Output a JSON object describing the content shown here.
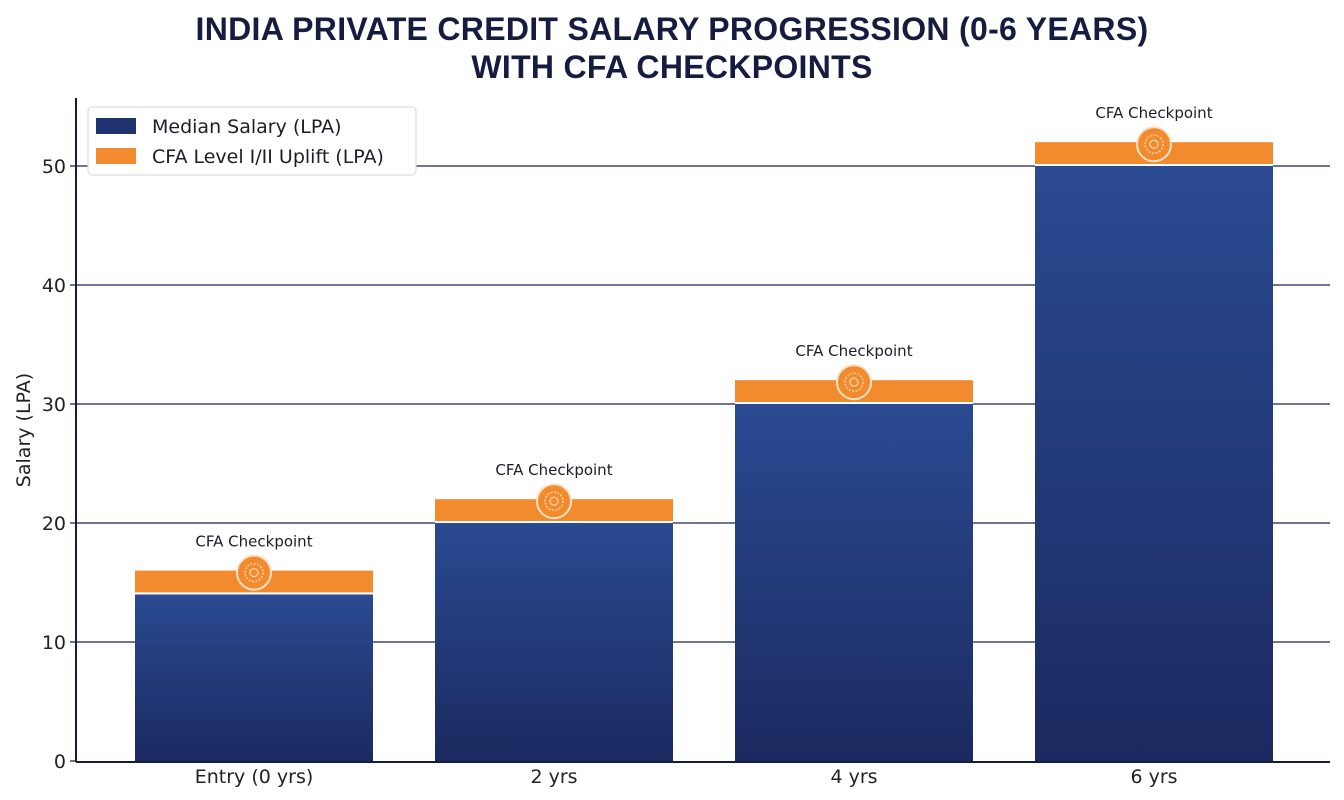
{
  "chart_data": {
    "type": "bar",
    "stacked": true,
    "title": "INDIA PRIVATE CREDIT SALARY PROGRESSION (0-6 YEARS) WITH CFA CHECKPOINTS",
    "title_lines": [
      "INDIA PRIVATE CREDIT SALARY PROGRESSION (0-6 YEARS)",
      "WITH CFA CHECKPOINTS"
    ],
    "xlabel": "",
    "ylabel": "Salary (LPA)",
    "ylim": [
      0,
      55
    ],
    "yticks": [
      0,
      10,
      20,
      30,
      40,
      50
    ],
    "grid": "horizontal",
    "legend_position": "top-left",
    "categories": [
      "Entry (0 yrs)",
      "2 yrs",
      "4 yrs",
      "6 yrs"
    ],
    "series": [
      {
        "name": "Median Salary (LPA)",
        "values": [
          14,
          20,
          30,
          50
        ],
        "color": "#1f3370"
      },
      {
        "name": "CFA Level I/II Uplift (LPA)",
        "values": [
          2,
          2,
          2,
          2
        ],
        "color": "#f28a2e"
      }
    ],
    "annotations": [
      "CFA Checkpoint",
      "CFA Checkpoint",
      "CFA Checkpoint",
      "CFA Checkpoint"
    ],
    "annotation_icon": "gear-badge-icon"
  }
}
